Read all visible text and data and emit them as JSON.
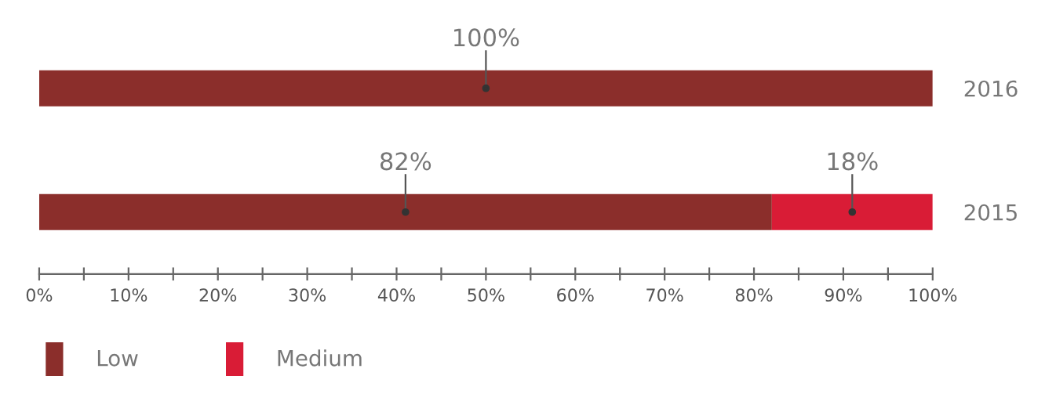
{
  "chart_data": {
    "type": "bar",
    "orientation": "horizontal",
    "stacked": true,
    "categories": [
      "2016",
      "2015"
    ],
    "series": [
      {
        "name": "Low",
        "color": "#8b2e2b",
        "values": [
          100,
          82
        ],
        "value_labels": [
          "100%",
          "82%"
        ]
      },
      {
        "name": "Medium",
        "color": "#d91c36",
        "values": [
          null,
          18
        ],
        "value_labels": [
          null,
          "18%"
        ]
      }
    ],
    "xlim": [
      0,
      100
    ],
    "xticks": [
      {
        "value": 0,
        "label": "0%"
      },
      {
        "value": 5,
        "label": null
      },
      {
        "value": 10,
        "label": "10%"
      },
      {
        "value": 15,
        "label": null
      },
      {
        "value": 20,
        "label": "20%"
      },
      {
        "value": 25,
        "label": null
      },
      {
        "value": 30,
        "label": "30%"
      },
      {
        "value": 35,
        "label": null
      },
      {
        "value": 40,
        "label": "40%"
      },
      {
        "value": 45,
        "label": null
      },
      {
        "value": 50,
        "label": "50%"
      },
      {
        "value": 55,
        "label": null
      },
      {
        "value": 60,
        "label": "60%"
      },
      {
        "value": 65,
        "label": null
      },
      {
        "value": 70,
        "label": "70%"
      },
      {
        "value": 75,
        "label": null
      },
      {
        "value": 80,
        "label": "80%"
      },
      {
        "value": 85,
        "label": null
      },
      {
        "value": 90,
        "label": "90%"
      },
      {
        "value": 95,
        "label": null
      },
      {
        "value": 100,
        "label": "100%"
      }
    ],
    "grid": false,
    "legend": "bottom left"
  }
}
